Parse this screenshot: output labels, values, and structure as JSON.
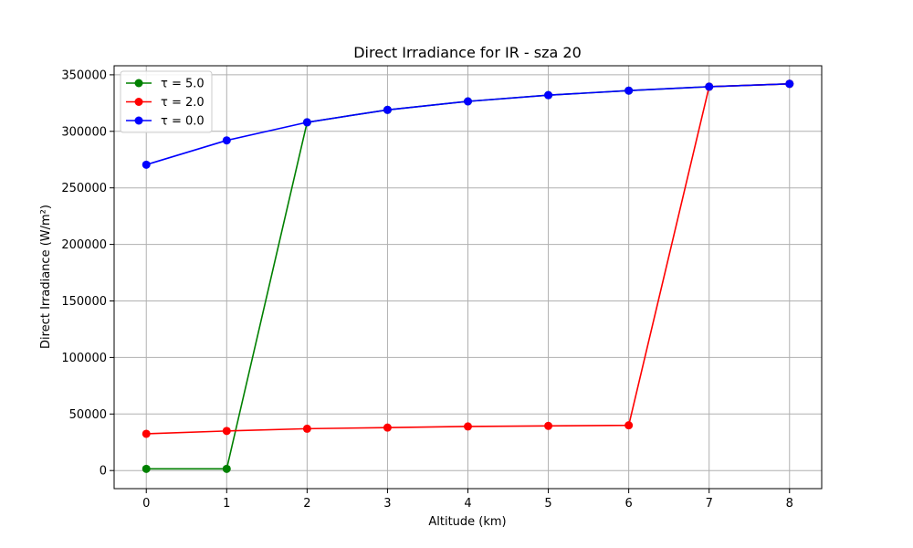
{
  "chart_data": {
    "type": "line",
    "title": "Direct Irradiance for IR - sza 20",
    "xlabel": "Altitude (km)",
    "ylabel": "Direct Irradiance (W/m²)",
    "xlim": [
      -0.4,
      8.4
    ],
    "ylim": [
      -16000,
      358000
    ],
    "xticks": [
      0,
      1,
      2,
      3,
      4,
      5,
      6,
      7,
      8
    ],
    "yticks": [
      0,
      50000,
      100000,
      150000,
      200000,
      250000,
      300000,
      350000
    ],
    "grid": true,
    "legend_position": "top-left",
    "x": [
      0,
      1,
      2,
      3,
      4,
      5,
      6,
      7,
      8
    ],
    "series": [
      {
        "name": "τ = 5.0",
        "color": "#008000",
        "values": [
          1500,
          1500,
          308000,
          319000,
          326500,
          332000,
          336000,
          339500,
          342000
        ]
      },
      {
        "name": "τ = 2.0",
        "color": "#ff0000",
        "values": [
          32500,
          35000,
          37000,
          38000,
          39000,
          39500,
          40000,
          339500,
          342000
        ]
      },
      {
        "name": "τ = 0.0",
        "color": "#0000ff",
        "values": [
          270500,
          292000,
          308000,
          319000,
          326500,
          332000,
          336000,
          339500,
          342000
        ]
      }
    ]
  }
}
